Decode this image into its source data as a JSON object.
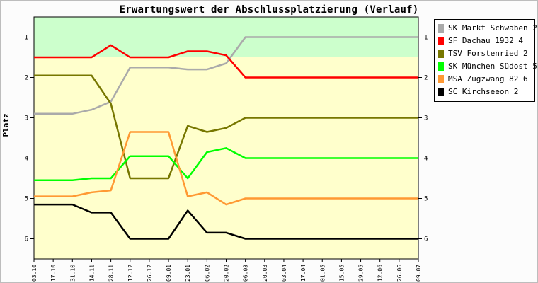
{
  "chart_data": {
    "type": "line",
    "title": "Erwartungswert der Abschlussplatzierung (Verlauf)",
    "xlabel": "",
    "ylabel": "Platz",
    "ylim": [
      6.5,
      0.5
    ],
    "yticks": [
      1,
      2,
      3,
      4,
      5,
      6
    ],
    "bands": [
      {
        "from": 0.5,
        "to": 1.5,
        "color": "#ccffcc"
      },
      {
        "from": 1.5,
        "to": 6.5,
        "color": "#ffffcc"
      }
    ],
    "categories": [
      "03.10",
      "17.10",
      "31.10",
      "14.11",
      "28.11",
      "12.12",
      "26.12",
      "09.01",
      "23.01",
      "06.02",
      "20.02",
      "06.03",
      "20.03",
      "03.04",
      "17.04",
      "01.05",
      "15.05",
      "29.05",
      "12.06",
      "26.06",
      "09.07"
    ],
    "series": [
      {
        "name": "SK Markt Schwaben 2",
        "color": "#aaaaaa",
        "values": [
          2.9,
          2.9,
          2.9,
          2.8,
          2.6,
          1.75,
          1.75,
          1.75,
          1.8,
          1.8,
          1.65,
          1.0,
          1.0,
          1.0,
          1.0,
          1.0,
          1.0,
          1.0,
          1.0,
          1.0,
          1.0
        ]
      },
      {
        "name": "SF Dachau 1932 4",
        "color": "#ff0000",
        "values": [
          1.5,
          1.5,
          1.5,
          1.5,
          1.2,
          1.5,
          1.5,
          1.5,
          1.35,
          1.35,
          1.45,
          2.0,
          2.0,
          2.0,
          2.0,
          2.0,
          2.0,
          2.0,
          2.0,
          2.0,
          2.0
        ]
      },
      {
        "name": "TSV Forstenried 2",
        "color": "#777700",
        "values": [
          1.95,
          1.95,
          1.95,
          1.95,
          2.65,
          4.5,
          4.5,
          4.5,
          3.2,
          3.35,
          3.25,
          3.0,
          3.0,
          3.0,
          3.0,
          3.0,
          3.0,
          3.0,
          3.0,
          3.0,
          3.0
        ]
      },
      {
        "name": "SK München Südost 5",
        "color": "#00ff00",
        "values": [
          4.55,
          4.55,
          4.55,
          4.5,
          4.5,
          3.95,
          3.95,
          3.95,
          4.5,
          3.85,
          3.75,
          4.0,
          4.0,
          4.0,
          4.0,
          4.0,
          4.0,
          4.0,
          4.0,
          4.0,
          4.0
        ]
      },
      {
        "name": "MSA Zugzwang 82 6",
        "color": "#ff9933",
        "values": [
          4.95,
          4.95,
          4.95,
          4.85,
          4.8,
          3.35,
          3.35,
          3.35,
          4.95,
          4.85,
          5.15,
          5.0,
          5.0,
          5.0,
          5.0,
          5.0,
          5.0,
          5.0,
          5.0,
          5.0,
          5.0
        ]
      },
      {
        "name": "SC Kirchseeon 2",
        "color": "#000000",
        "values": [
          5.15,
          5.15,
          5.15,
          5.35,
          5.35,
          6.0,
          6.0,
          6.0,
          5.3,
          5.85,
          5.85,
          6.0,
          6.0,
          6.0,
          6.0,
          6.0,
          6.0,
          6.0,
          6.0,
          6.0,
          6.0
        ]
      }
    ],
    "legend_position": "top-right",
    "grid": false
  }
}
